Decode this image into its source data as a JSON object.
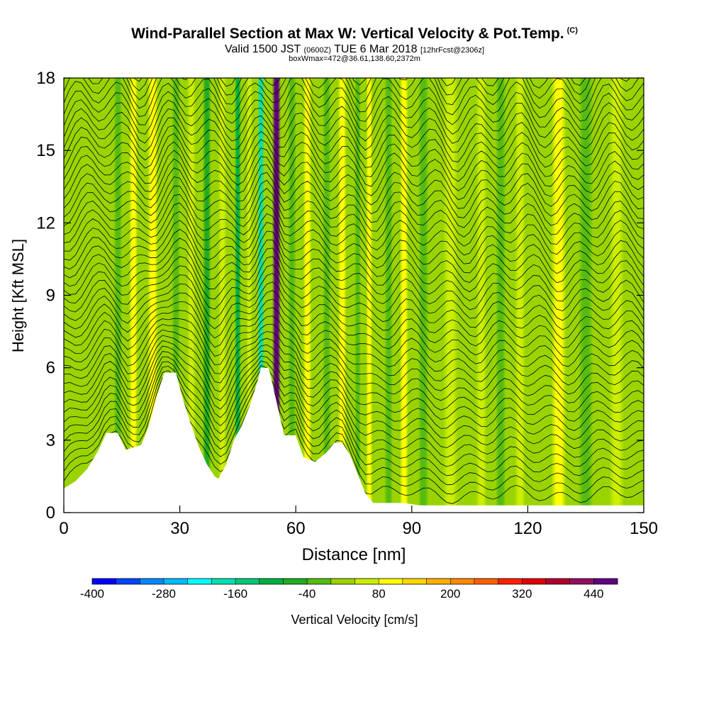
{
  "header": {
    "title": "Wind-Parallel Section at Max W: Vertical Velocity & Pot.Temp.",
    "copyright": "(C)",
    "valid_prefix": "Valid 1500 JST",
    "valid_utc": "(0600Z)",
    "valid_date": "TUE 6 Mar 2018",
    "forecast": "[12hrFcst@2306z]",
    "boxline": "boxWmax=472@36.61,138.60,2372m"
  },
  "chart_data": {
    "type": "heatmap",
    "xlabel": "Distance [nm]",
    "ylabel": "Height [Kft MSL]",
    "xlim": [
      0,
      150
    ],
    "ylim": [
      0,
      18
    ],
    "x_ticks": [
      0,
      30,
      60,
      90,
      120,
      150
    ],
    "y_ticks": [
      0,
      3,
      6,
      9,
      12,
      15,
      18
    ],
    "colorbar": {
      "label": "Vertical Velocity [cm/s]",
      "min": -400,
      "step": 40,
      "tick_labels": [
        "-400",
        "-280",
        "-160",
        "-40",
        "80",
        "200",
        "320",
        "440"
      ],
      "colors": [
        "#0000ff",
        "#0044ff",
        "#0088ff",
        "#00bbff",
        "#00ffff",
        "#00e0b0",
        "#00c878",
        "#00b040",
        "#22aa22",
        "#55bb11",
        "#99d400",
        "#ccee00",
        "#ffff00",
        "#ffd700",
        "#ffb000",
        "#ff8800",
        "#ff6000",
        "#ff2000",
        "#e00000",
        "#b00030",
        "#901060",
        "#600080"
      ]
    },
    "terrain_kft": [
      [
        0,
        1
      ],
      [
        3,
        1.3
      ],
      [
        6,
        1.8
      ],
      [
        9,
        2.6
      ],
      [
        11,
        3.3
      ],
      [
        14,
        3.3
      ],
      [
        16,
        2.6
      ],
      [
        20,
        2.8
      ],
      [
        22,
        3.6
      ],
      [
        24,
        4.8
      ],
      [
        26,
        5.8
      ],
      [
        29,
        5.8
      ],
      [
        31,
        4.6
      ],
      [
        33,
        3.6
      ],
      [
        35,
        2.7
      ],
      [
        37,
        2.0
      ],
      [
        39,
        1.5
      ],
      [
        40,
        1.4
      ],
      [
        42,
        2.0
      ],
      [
        44,
        3.0
      ],
      [
        46,
        3.6
      ],
      [
        48,
        4.4
      ],
      [
        50,
        5.4
      ],
      [
        51,
        6.0
      ],
      [
        53,
        6.0
      ],
      [
        55,
        4.6
      ],
      [
        57,
        3.2
      ],
      [
        60,
        3.2
      ],
      [
        62,
        2.3
      ],
      [
        65,
        2.1
      ],
      [
        68,
        2.5
      ],
      [
        70,
        2.9
      ],
      [
        72,
        2.9
      ],
      [
        74,
        2.4
      ],
      [
        76,
        1.6
      ],
      [
        78,
        0.8
      ],
      [
        80,
        0.4
      ],
      [
        88,
        0.4
      ],
      [
        92,
        0.3
      ],
      [
        150,
        0.3
      ]
    ],
    "updraft_bands": [
      {
        "x": 14,
        "w": -40
      },
      {
        "x": 18,
        "w": 80
      },
      {
        "x": 23,
        "w": 80
      },
      {
        "x": 29,
        "w": -40
      },
      {
        "x": 33,
        "w": 60
      },
      {
        "x": 37,
        "w": -80
      },
      {
        "x": 41,
        "w": 40
      },
      {
        "x": 45,
        "w": -100
      },
      {
        "x": 48,
        "w": 40
      },
      {
        "x": 51,
        "w": -200
      },
      {
        "x": 55,
        "w": 472
      },
      {
        "x": 59,
        "w": -40
      },
      {
        "x": 63,
        "w": 80
      },
      {
        "x": 68,
        "w": -40
      },
      {
        "x": 72,
        "w": 80
      },
      {
        "x": 76,
        "w": -40
      },
      {
        "x": 79,
        "w": 80
      },
      {
        "x": 84,
        "w": -40
      },
      {
        "x": 88,
        "w": 80
      },
      {
        "x": 93,
        "w": -40
      },
      {
        "x": 100,
        "w": 40
      },
      {
        "x": 108,
        "w": 40
      },
      {
        "x": 113,
        "w": -40
      },
      {
        "x": 118,
        "w": 40
      },
      {
        "x": 128,
        "w": 80
      },
      {
        "x": 135,
        "w": -40
      },
      {
        "x": 143,
        "w": 40
      }
    ]
  }
}
